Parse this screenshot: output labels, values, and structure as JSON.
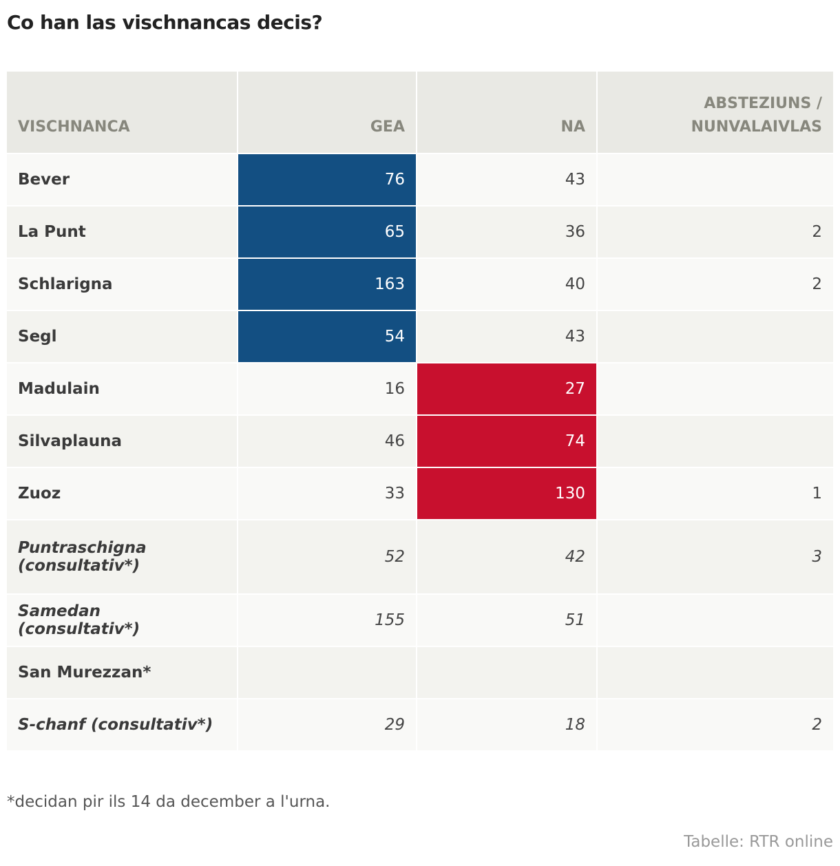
{
  "title": "Co han las vischnancas decis?",
  "colors": {
    "gea_highlight": "#134f82",
    "na_highlight": "#c8102e"
  },
  "chart_data": {
    "type": "table",
    "title": "Co han las vischnancas decis?",
    "columns": [
      "VISCHNANCA",
      "GEA",
      "NA",
      "ABSTEZIUNS / NUNVALAIVLAS"
    ],
    "rows": [
      {
        "name": "Bever",
        "gea": "76",
        "na": "43",
        "abst": "",
        "winner": "gea",
        "italic": false
      },
      {
        "name": "La Punt",
        "gea": "65",
        "na": "36",
        "abst": "2",
        "winner": "gea",
        "italic": false
      },
      {
        "name": "Schlarigna",
        "gea": "163",
        "na": "40",
        "abst": "2",
        "winner": "gea",
        "italic": false
      },
      {
        "name": "Segl",
        "gea": "54",
        "na": "43",
        "abst": "",
        "winner": "gea",
        "italic": false
      },
      {
        "name": "Madulain",
        "gea": "16",
        "na": "27",
        "abst": "",
        "winner": "na",
        "italic": false
      },
      {
        "name": "Silvaplauna",
        "gea": "46",
        "na": "74",
        "abst": "",
        "winner": "na",
        "italic": false
      },
      {
        "name": "Zuoz",
        "gea": "33",
        "na": "130",
        "abst": "1",
        "winner": "na",
        "italic": false
      },
      {
        "name": "Puntraschigna (consultativ*)",
        "gea": "52",
        "na": "42",
        "abst": "3",
        "winner": "",
        "italic": true
      },
      {
        "name": "Samedan (consultativ*)",
        "gea": "155",
        "na": "51",
        "abst": "",
        "winner": "",
        "italic": true
      },
      {
        "name": "San Murezzan*",
        "gea": "",
        "na": "",
        "abst": "",
        "winner": "",
        "italic": false
      },
      {
        "name": "S-chanf (consultativ*)",
        "gea": "29",
        "na": "18",
        "abst": "2",
        "winner": "",
        "italic": true
      }
    ]
  },
  "footnote": "*decidan pir ils 14 da december a l'urna.",
  "source": "Tabelle: RTR online"
}
